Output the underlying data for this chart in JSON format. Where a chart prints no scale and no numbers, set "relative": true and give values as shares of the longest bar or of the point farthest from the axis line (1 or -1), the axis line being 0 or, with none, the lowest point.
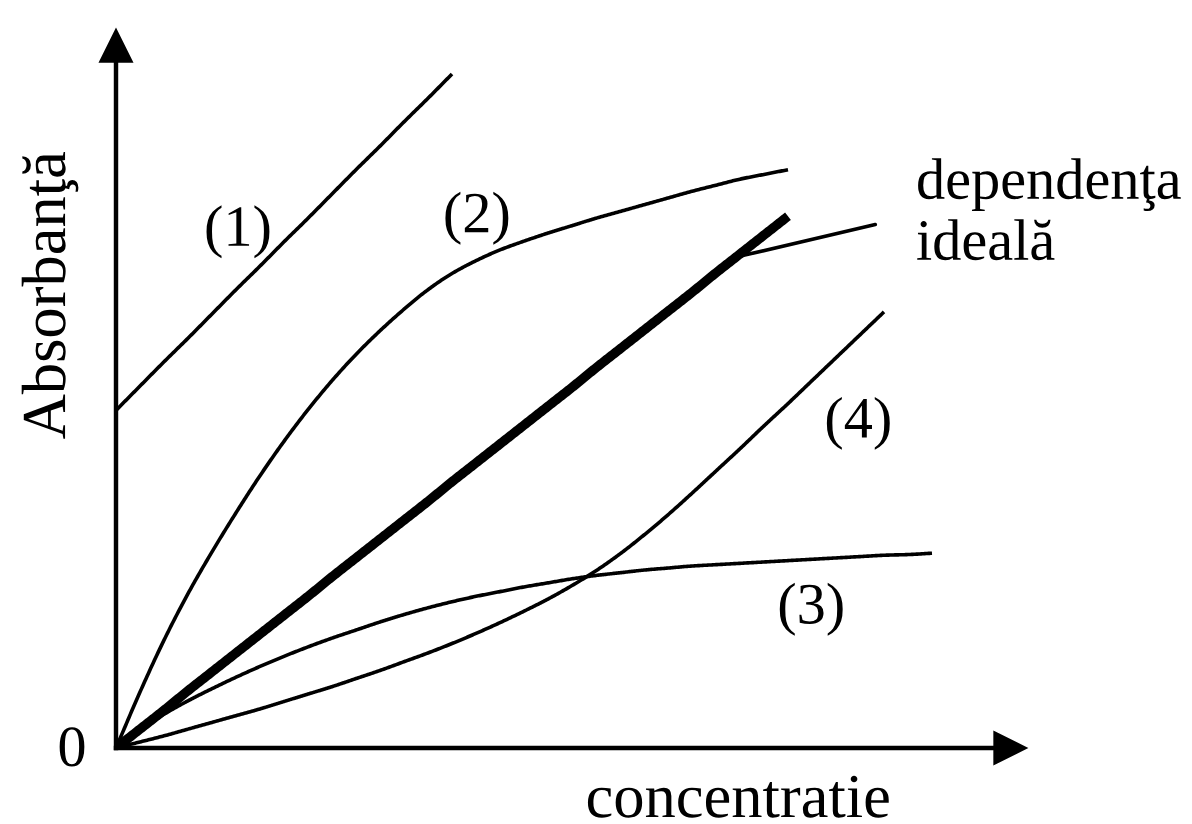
{
  "chart_data": {
    "type": "line",
    "relative": true,
    "xlabel": "concentratie",
    "ylabel": "Absorbanţă",
    "annotations": [
      "0"
    ],
    "categories": [
      null,
      null,
      null,
      null,
      null,
      null,
      null,
      null,
      null,
      null,
      null,
      null,
      null,
      null,
      null,
      null,
      null,
      null,
      null,
      null,
      null,
      null,
      null,
      null,
      null,
      null,
      null,
      null,
      null,
      null,
      null,
      null,
      null,
      null,
      null
    ],
    "series": [
      {
        "name": "(1)",
        "color": "#000000",
        "values": [
          0.501,
          0.537,
          0.573,
          0.608,
          0.644,
          0.68,
          0.715,
          0.751,
          0.786,
          0.822,
          0.858,
          0.893,
          0.929,
          0.964,
          1.0,
          null,
          null,
          null,
          null,
          null,
          null,
          null,
          null,
          null,
          null,
          null,
          null,
          null,
          null,
          null,
          null,
          null,
          null,
          null,
          null
        ]
      },
      {
        "name": "(2)",
        "color": "#000000",
        "values": [
          0,
          0.083,
          0.16,
          0.229,
          0.291,
          0.349,
          0.404,
          0.455,
          0.502,
          0.545,
          0.584,
          0.619,
          0.651,
          0.68,
          0.704,
          0.723,
          0.739,
          0.752,
          0.764,
          0.775,
          0.786,
          0.796,
          0.806,
          0.816,
          0.826,
          0.835,
          0.844,
          0.851,
          0.858,
          null,
          null,
          null,
          null,
          null,
          null
        ]
      },
      {
        "name": "(3)",
        "color": "#000000",
        "values": [
          0,
          0.026,
          0.05,
          0.07,
          0.088,
          0.105,
          0.121,
          0.136,
          0.15,
          0.163,
          0.175,
          0.187,
          0.198,
          0.208,
          0.217,
          0.225,
          0.232,
          0.239,
          0.245,
          0.251,
          0.256,
          0.26,
          0.264,
          0.267,
          0.27,
          0.272,
          0.274,
          0.276,
          0.278,
          0.28,
          0.282,
          0.284,
          0.286,
          0.287,
          0.289
        ]
      },
      {
        "name": "(4)",
        "color": "#000000",
        "values": [
          0,
          0.009,
          0.018,
          0.028,
          0.038,
          0.048,
          0.058,
          0.069,
          0.08,
          0.091,
          0.103,
          0.115,
          0.128,
          0.141,
          0.155,
          0.17,
          0.186,
          0.203,
          0.221,
          0.241,
          0.263,
          0.288,
          0.316,
          0.346,
          0.378,
          0.411,
          0.444,
          0.478,
          0.511,
          0.545,
          0.579,
          0.613,
          0.647,
          null,
          null
        ]
      },
      {
        "name": "dependenţa ideală",
        "color": "#000000",
        "values": [
          0,
          0.028,
          0.056,
          0.085,
          0.113,
          0.141,
          0.169,
          0.197,
          0.225,
          0.254,
          0.282,
          0.31,
          0.338,
          0.366,
          0.395,
          0.423,
          0.451,
          0.479,
          0.507,
          0.535,
          0.564,
          0.592,
          0.62,
          0.648,
          0.676,
          0.705,
          0.733,
          0.761,
          0.789,
          null,
          null,
          null,
          null,
          null,
          null
        ]
      }
    ]
  }
}
